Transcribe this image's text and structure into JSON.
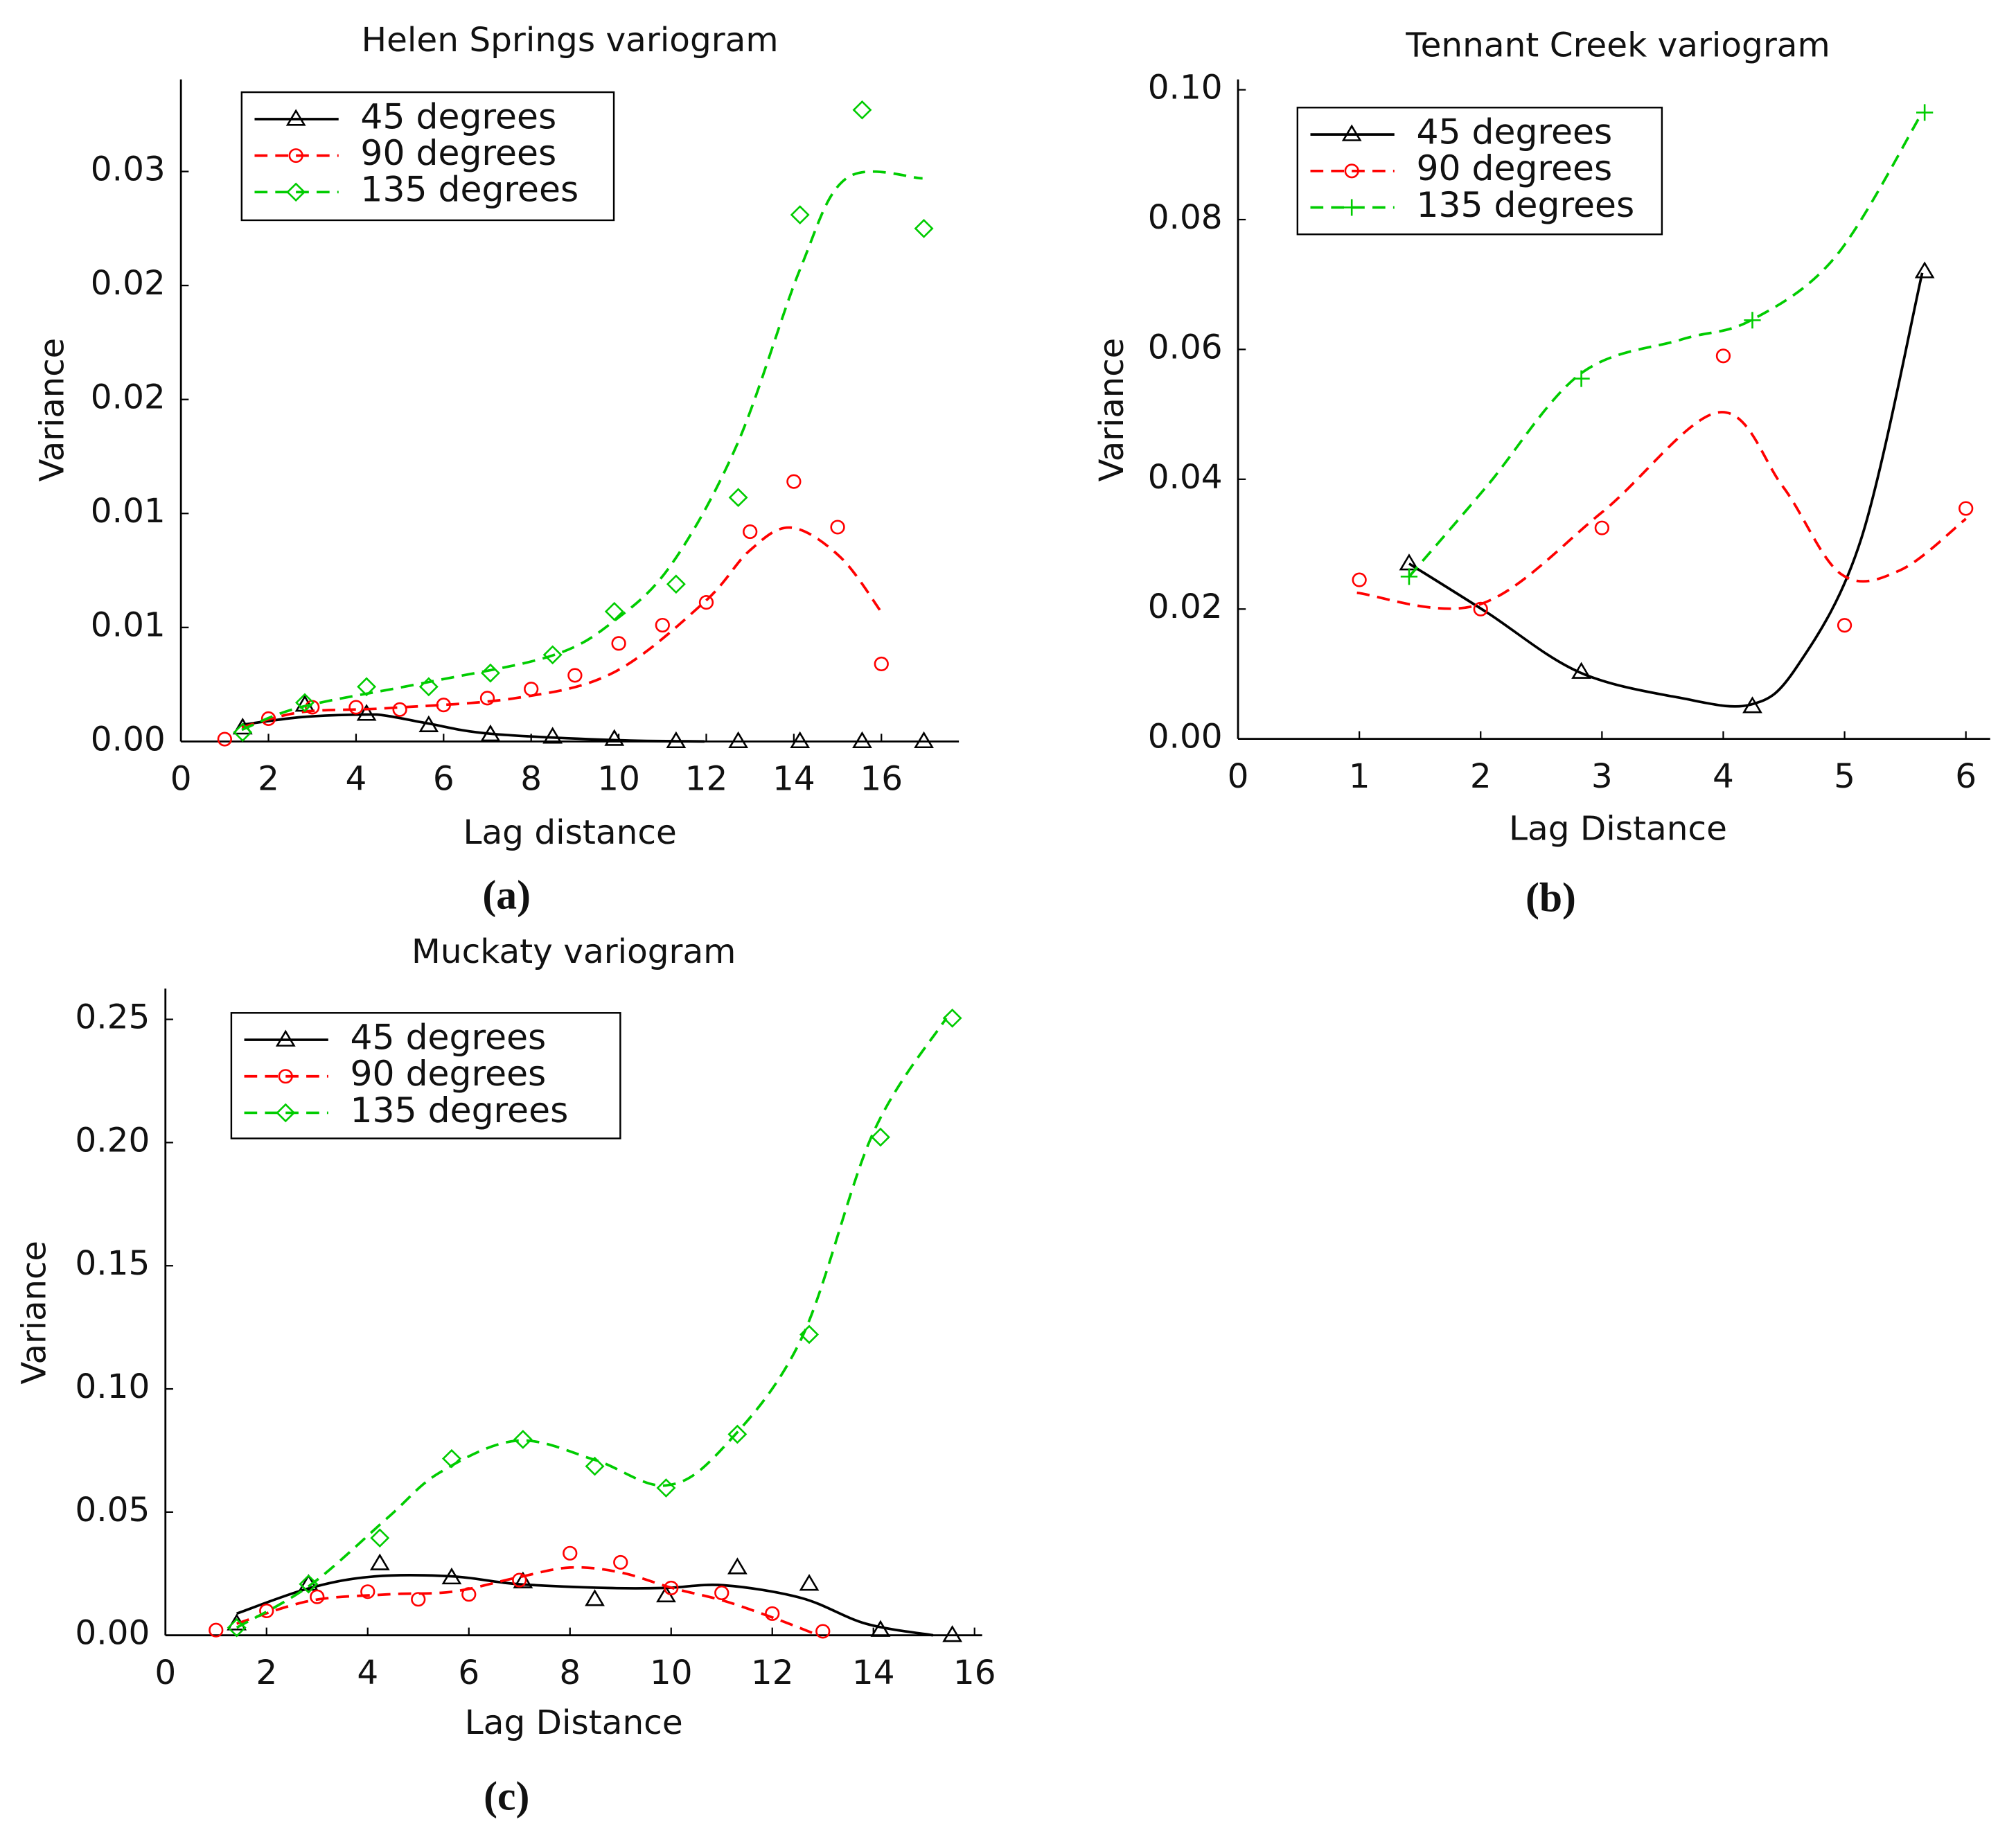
{
  "chart_data": [
    {
      "type": "scatter",
      "title": "Helen Springs variogram",
      "x_label": "Lag distance",
      "y_label": "Variance",
      "caption": "(a)",
      "xlim": [
        0,
        17.77
      ],
      "ylim": [
        0,
        0.02904
      ],
      "xticks": [
        0,
        2,
        4,
        6,
        8,
        10,
        12,
        14,
        16
      ],
      "yticks": [
        {
          "value": 0,
          "label": "0.00"
        },
        {
          "value": 0.005,
          "label": "0.01"
        },
        {
          "value": 0.01,
          "label": "0.01"
        },
        {
          "value": 0.015,
          "label": "0.02"
        },
        {
          "value": 0.02,
          "label": "0.02"
        },
        {
          "value": 0.025,
          "label": "0.03"
        }
      ],
      "legend": "upper left",
      "series": [
        {
          "name": "45 degrees",
          "color": "#000000",
          "marker": "triangle",
          "linestyle": "solid",
          "x": [
            1.41,
            2.83,
            4.24,
            5.66,
            7.07,
            8.49,
            9.9,
            11.31,
            12.73,
            14.14,
            15.56,
            16.97
          ],
          "values": [
            0.0006,
            0.0016,
            0.0012,
            0.0007,
            0.0003,
            0.0002,
            0.0001,
            0,
            0,
            0,
            0,
            0
          ],
          "curve": {
            "x": [
              1.39,
              2.77,
              4.19,
              4.72,
              5.64,
              7.06,
              9.89,
              11.96
            ],
            "values": [
              0.00073,
              0.00107,
              0.00118,
              0.00112,
              0.00079,
              0.00034,
              6e-05,
              0
            ]
          }
        },
        {
          "name": "90 degrees",
          "color": "#ff0000",
          "marker": "circle",
          "linestyle": "dashed",
          "x": [
            1,
            2,
            3,
            4,
            5,
            6,
            7,
            8,
            9,
            10,
            11,
            12,
            13,
            14,
            15,
            16
          ],
          "values": [
            0.0001,
            0.001,
            0.0015,
            0.0015,
            0.0014,
            0.0016,
            0.0019,
            0.0023,
            0.0029,
            0.0043,
            0.0051,
            0.0061,
            0.0092,
            0.0114,
            0.0094,
            0.0034
          ],
          "curve": {
            "x": [
              1.39,
              2.77,
              4.72,
              7.68,
              9.89,
              11.96,
              12.99,
              13.93,
              15.06,
              16.0
            ],
            "values": [
              0.00062,
              0.00129,
              0.00146,
              0.00191,
              0.00303,
              0.00612,
              0.00837,
              0.00938,
              0.00809,
              0.00567
            ]
          }
        },
        {
          "name": "135 degrees",
          "color": "#00cc00",
          "marker": "diamond",
          "linestyle": "dashed",
          "x": [
            1.41,
            2.83,
            4.24,
            5.66,
            7.07,
            8.49,
            9.9,
            11.31,
            12.73,
            14.14,
            15.56,
            16.97
          ],
          "values": [
            0.0004,
            0.0017,
            0.0024,
            0.0024,
            0.003,
            0.0038,
            0.0057,
            0.0069,
            0.0107,
            0.0231,
            0.0277,
            0.0225
          ],
          "curve": {
            "x": [
              1.39,
              2.77,
              5.64,
              8.47,
              9.89,
              11.22,
              12.72,
              14.14,
              15.2,
              16.94
            ],
            "values": [
              0.00051,
              0.00152,
              0.0026,
              0.00376,
              0.00528,
              0.00781,
              0.0131,
              0.0207,
              0.0247,
              0.0247
            ]
          }
        }
      ]
    },
    {
      "type": "scatter",
      "title": "Tennant Creek variogram",
      "x_label": "Lag Distance",
      "y_label": "Variance",
      "caption": "(b)",
      "xlim": [
        0,
        6.2
      ],
      "ylim": [
        0,
        0.1016
      ],
      "xticks": [
        0,
        1,
        2,
        3,
        4,
        5,
        6
      ],
      "yticks": [
        {
          "value": 0,
          "label": "0.00"
        },
        {
          "value": 0.02,
          "label": "0.02"
        },
        {
          "value": 0.04,
          "label": "0.04"
        },
        {
          "value": 0.06,
          "label": "0.06"
        },
        {
          "value": 0.08,
          "label": "0.08"
        },
        {
          "value": 0.1,
          "label": "0.10"
        }
      ],
      "legend": "upper left",
      "series": [
        {
          "name": "45 degrees",
          "color": "#000000",
          "marker": "triangle",
          "linestyle": "solid",
          "x": [
            1.41,
            2.83,
            4.24,
            5.66
          ],
          "values": [
            0.027,
            0.0103,
            0.005,
            0.072
          ],
          "curve": {
            "x": [
              1.41,
              2.05,
              2.81,
              3.65,
              4.23,
              4.61,
              5.14,
              5.64
            ],
            "values": [
              0.027,
              0.0195,
              0.0103,
              0.0063,
              0.0053,
              0.0112,
              0.031,
              0.0718
            ]
          }
        },
        {
          "name": "90 degrees",
          "color": "#ff0000",
          "marker": "circle",
          "linestyle": "dashed",
          "x": [
            1,
            2,
            3,
            4,
            5,
            6
          ],
          "values": [
            0.0245,
            0.02,
            0.0325,
            0.059,
            0.0175,
            0.0355
          ],
          "curve": {
            "x": [
              0.98,
              1.99,
              3.0,
              3.96,
              4.49,
              4.97,
              5.46,
              6.0
            ],
            "values": [
              0.0225,
              0.0207,
              0.0349,
              0.0503,
              0.0389,
              0.0254,
              0.026,
              0.0339
            ]
          }
        },
        {
          "name": "135 degrees",
          "color": "#00cc00",
          "marker": "plus",
          "linestyle": "dashed",
          "x": [
            1.41,
            2.83,
            4.24,
            5.66
          ],
          "values": [
            0.025,
            0.0555,
            0.0645,
            0.0965
          ],
          "curve": {
            "x": [
              1.41,
              2.05,
              2.82,
              3.65,
              4.23,
              4.93,
              5.64
            ],
            "values": [
              0.025,
              0.0389,
              0.0562,
              0.0615,
              0.0645,
              0.0744,
              0.0965
            ]
          }
        }
      ]
    },
    {
      "type": "scatter",
      "title": "Muckaty variogram",
      "x_label": "Lag Distance",
      "y_label": "Variance",
      "caption": "(c)",
      "xlim": [
        0,
        16.15
      ],
      "ylim": [
        0,
        0.2625
      ],
      "xticks": [
        0,
        2,
        4,
        6,
        8,
        10,
        12,
        14,
        16
      ],
      "yticks": [
        {
          "value": 0,
          "label": "0.00"
        },
        {
          "value": 0.05,
          "label": "0.05"
        },
        {
          "value": 0.1,
          "label": "0.10"
        },
        {
          "value": 0.15,
          "label": "0.15"
        },
        {
          "value": 0.2,
          "label": "0.20"
        },
        {
          "value": 0.25,
          "label": "0.25"
        }
      ],
      "legend": "upper left",
      "series": [
        {
          "name": "45 degrees",
          "color": "#000000",
          "marker": "triangle",
          "linestyle": "solid",
          "x": [
            1.41,
            2.83,
            4.24,
            5.66,
            7.07,
            8.49,
            9.9,
            11.31,
            12.73,
            14.14,
            15.56
          ],
          "values": [
            0.0047,
            0.0208,
            0.0291,
            0.0234,
            0.0218,
            0.0146,
            0.0161,
            0.0275,
            0.0208,
            0.0021,
            0
          ],
          "curve": {
            "x": [
              1.41,
              2.86,
              4.14,
              5.68,
              6.95,
              8.74,
              9.89,
              11.04,
              12.58,
              13.85,
              15.18
            ],
            "values": [
              0.0088,
              0.0192,
              0.0239,
              0.0239,
              0.0208,
              0.0192,
              0.0192,
              0.0203,
              0.0151,
              0.0047,
              0
            ]
          }
        },
        {
          "name": "90 degrees",
          "color": "#ff0000",
          "marker": "circle",
          "linestyle": "dashed",
          "x": [
            1,
            2,
            3,
            4,
            5,
            6,
            7,
            8,
            9,
            10,
            11,
            12,
            13
          ],
          "values": [
            0.0021,
            0.0099,
            0.0156,
            0.0177,
            0.0146,
            0.0166,
            0.0224,
            0.0333,
            0.0296,
            0.0192,
            0.0172,
            0.0088,
            0.0016
          ],
          "curve": {
            "x": [
              1.41,
              2.86,
              4.4,
              5.68,
              6.95,
              8.0,
              9.0,
              10.02,
              11.04,
              12.06,
              12.91
            ],
            "values": [
              0.0047,
              0.014,
              0.0166,
              0.0177,
              0.0234,
              0.0275,
              0.0255,
              0.0192,
              0.014,
              0.0068,
              0
            ]
          }
        },
        {
          "name": "135 degrees",
          "color": "#00cc00",
          "marker": "diamond",
          "linestyle": "dashed",
          "x": [
            1.41,
            2.83,
            4.24,
            5.66,
            7.07,
            8.49,
            9.9,
            11.31,
            12.73,
            14.14,
            15.56
          ],
          "values": [
            0.0031,
            0.0208,
            0.0395,
            0.0717,
            0.0795,
            0.0686,
            0.0598,
            0.0816,
            0.1221,
            0.2022,
            0.2505
          ],
          "curve": {
            "x": [
              1.41,
              2.86,
              4.4,
              5.42,
              6.95,
              8.49,
              9.89,
              11.04,
              12.58,
              13.99,
              15.44
            ],
            "values": [
              0.0031,
              0.0203,
              0.0478,
              0.066,
              0.079,
              0.0712,
              0.0608,
              0.0764,
              0.1206,
              0.2037,
              0.2505
            ]
          }
        }
      ]
    }
  ]
}
